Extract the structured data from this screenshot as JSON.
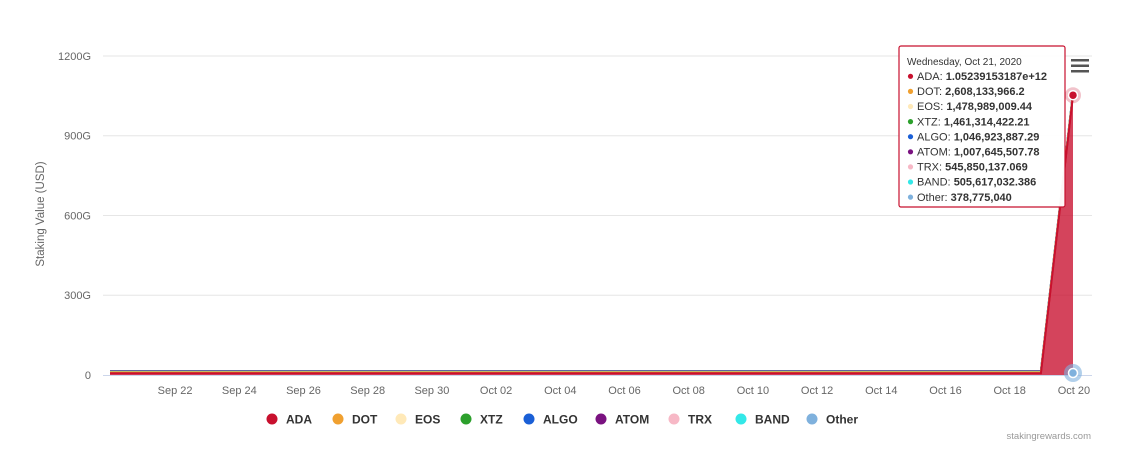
{
  "chart_data": {
    "type": "area",
    "title": "",
    "ylabel": "Staking Value (USD)",
    "xlabel": "",
    "ylim": [
      0,
      1260000000000
    ],
    "yticks": [
      0,
      300000000000,
      600000000000,
      900000000000,
      1200000000000
    ],
    "ytick_labels": [
      "0",
      "300G",
      "600G",
      "900G",
      "1200G"
    ],
    "x_tick_labels": [
      "Sep 22",
      "Sep 24",
      "Sep 26",
      "Sep 28",
      "Sep 30",
      "Oct 02",
      "Oct 04",
      "Oct 06",
      "Oct 08",
      "Oct 10",
      "Oct 12",
      "Oct 14",
      "Oct 16",
      "Oct 18",
      "Oct 20"
    ],
    "x": [
      "Sep 21",
      "Sep 22",
      "Sep 23",
      "Sep 24",
      "Sep 25",
      "Sep 26",
      "Sep 27",
      "Sep 28",
      "Sep 29",
      "Sep 30",
      "Oct 01",
      "Oct 02",
      "Oct 03",
      "Oct 04",
      "Oct 05",
      "Oct 06",
      "Oct 07",
      "Oct 08",
      "Oct 09",
      "Oct 10",
      "Oct 11",
      "Oct 12",
      "Oct 13",
      "Oct 14",
      "Oct 15",
      "Oct 16",
      "Oct 17",
      "Oct 18",
      "Oct 19",
      "Oct 20",
      "Oct 21"
    ],
    "grid": true,
    "legend_position": "bottom-center",
    "series": [
      {
        "name": "ADA",
        "color": "#c8102e",
        "values": [
          6500000000.0,
          6500000000.0,
          6500000000.0,
          6500000000.0,
          6500000000.0,
          6500000000.0,
          6500000000.0,
          6500000000.0,
          6500000000.0,
          6500000000.0,
          6500000000.0,
          6500000000.0,
          6500000000.0,
          6500000000.0,
          6500000000.0,
          6500000000.0,
          6500000000.0,
          6500000000.0,
          6500000000.0,
          6500000000.0,
          6500000000.0,
          6500000000.0,
          6500000000.0,
          6500000000.0,
          6500000000.0,
          6500000000.0,
          6500000000.0,
          6500000000.0,
          6500000000.0,
          6500000000.0,
          1052391531870
        ]
      },
      {
        "name": "DOT",
        "color": "#f0a030",
        "values": [
          2400000000.0,
          2400000000.0,
          2400000000.0,
          2400000000.0,
          2400000000.0,
          2400000000.0,
          2400000000.0,
          2400000000.0,
          2400000000.0,
          2400000000.0,
          2400000000.0,
          2400000000.0,
          2400000000.0,
          2400000000.0,
          2400000000.0,
          2400000000.0,
          2400000000.0,
          2400000000.0,
          2400000000.0,
          2400000000.0,
          2400000000.0,
          2400000000.0,
          2400000000.0,
          2400000000.0,
          2400000000.0,
          2400000000.0,
          2400000000.0,
          2400000000.0,
          2400000000.0,
          2500000000.0,
          2608133966.2
        ]
      },
      {
        "name": "EOS",
        "color": "#ffe9b8",
        "values": [
          1500000000.0,
          1500000000.0,
          1500000000.0,
          1500000000.0,
          1500000000.0,
          1500000000.0,
          1500000000.0,
          1500000000.0,
          1500000000.0,
          1500000000.0,
          1500000000.0,
          1500000000.0,
          1500000000.0,
          1500000000.0,
          1500000000.0,
          1500000000.0,
          1500000000.0,
          1500000000.0,
          1500000000.0,
          1500000000.0,
          1500000000.0,
          1500000000.0,
          1500000000.0,
          1500000000.0,
          1500000000.0,
          1500000000.0,
          1500000000.0,
          1500000000.0,
          1500000000.0,
          1500000000.0,
          1478989009.44
        ]
      },
      {
        "name": "XTZ",
        "color": "#2ca02c",
        "values": [
          1400000000.0,
          1400000000.0,
          1400000000.0,
          1400000000.0,
          1400000000.0,
          1400000000.0,
          1400000000.0,
          1400000000.0,
          1400000000.0,
          1400000000.0,
          1400000000.0,
          1400000000.0,
          1400000000.0,
          1400000000.0,
          1400000000.0,
          1400000000.0,
          1400000000.0,
          1400000000.0,
          1400000000.0,
          1400000000.0,
          1400000000.0,
          1400000000.0,
          1400000000.0,
          1400000000.0,
          1400000000.0,
          1400000000.0,
          1400000000.0,
          1400000000.0,
          1400000000.0,
          1450000000.0,
          1461314422.21
        ]
      },
      {
        "name": "ALGO",
        "color": "#1a5fd6",
        "values": [
          1000000000.0,
          1000000000.0,
          1000000000.0,
          1000000000.0,
          1000000000.0,
          1000000000.0,
          1000000000.0,
          1000000000.0,
          1000000000.0,
          1000000000.0,
          1000000000.0,
          1000000000.0,
          1000000000.0,
          1000000000.0,
          1000000000.0,
          1000000000.0,
          1000000000.0,
          1000000000.0,
          1000000000.0,
          1000000000.0,
          1000000000.0,
          1000000000.0,
          1000000000.0,
          1000000000.0,
          1000000000.0,
          1000000000.0,
          1000000000.0,
          1000000000.0,
          1000000000.0,
          1040000000.0,
          1046923887.29
        ]
      },
      {
        "name": "ATOM",
        "color": "#7a1280",
        "values": [
          1000000000.0,
          1000000000.0,
          1000000000.0,
          1000000000.0,
          1000000000.0,
          1000000000.0,
          1000000000.0,
          1000000000.0,
          1000000000.0,
          1000000000.0,
          1000000000.0,
          1000000000.0,
          1000000000.0,
          1000000000.0,
          1000000000.0,
          1000000000.0,
          1000000000.0,
          1000000000.0,
          1000000000.0,
          1000000000.0,
          1000000000.0,
          1000000000.0,
          1000000000.0,
          1000000000.0,
          1000000000.0,
          1000000000.0,
          1000000000.0,
          1000000000.0,
          1000000000.0,
          1000000000.0,
          1007645507.78
        ]
      },
      {
        "name": "TRX",
        "color": "#f7b8c6",
        "values": [
          540000000.0,
          540000000.0,
          540000000.0,
          540000000.0,
          540000000.0,
          540000000.0,
          540000000.0,
          540000000.0,
          540000000.0,
          540000000.0,
          540000000.0,
          540000000.0,
          540000000.0,
          540000000.0,
          540000000.0,
          540000000.0,
          540000000.0,
          540000000.0,
          540000000.0,
          540000000.0,
          540000000.0,
          540000000.0,
          540000000.0,
          540000000.0,
          540000000.0,
          540000000.0,
          540000000.0,
          540000000.0,
          540000000.0,
          545000000.0,
          545850137.069
        ]
      },
      {
        "name": "BAND",
        "color": "#33e8e8",
        "values": [
          500000000.0,
          500000000.0,
          500000000.0,
          500000000.0,
          500000000.0,
          500000000.0,
          500000000.0,
          500000000.0,
          500000000.0,
          500000000.0,
          500000000.0,
          500000000.0,
          500000000.0,
          500000000.0,
          500000000.0,
          500000000.0,
          500000000.0,
          500000000.0,
          500000000.0,
          500000000.0,
          500000000.0,
          500000000.0,
          500000000.0,
          500000000.0,
          500000000.0,
          500000000.0,
          500000000.0,
          500000000.0,
          500000000.0,
          500000000.0,
          505617032.386
        ]
      },
      {
        "name": "Other",
        "color": "#7fb1dd",
        "values": [
          380000000.0,
          380000000.0,
          380000000.0,
          380000000.0,
          380000000.0,
          380000000.0,
          380000000.0,
          380000000.0,
          380000000.0,
          380000000.0,
          380000000.0,
          380000000.0,
          380000000.0,
          380000000.0,
          380000000.0,
          380000000.0,
          380000000.0,
          380000000.0,
          380000000.0,
          380000000.0,
          380000000.0,
          380000000.0,
          380000000.0,
          380000000.0,
          380000000.0,
          380000000.0,
          380000000.0,
          380000000.0,
          380000000.0,
          380000000.0,
          378775040
        ]
      }
    ],
    "tooltip": {
      "date": "Wednesday, Oct 21, 2020",
      "rows": [
        {
          "name": "ADA",
          "value": "1.05239153187e+12"
        },
        {
          "name": "DOT",
          "value": "2,608,133,966.2"
        },
        {
          "name": "EOS",
          "value": "1,478,989,009.44"
        },
        {
          "name": "XTZ",
          "value": "1,461,314,422.21"
        },
        {
          "name": "ALGO",
          "value": "1,046,923,887.29"
        },
        {
          "name": "ATOM",
          "value": "1,007,645,507.78"
        },
        {
          "name": "TRX",
          "value": "545,850,137.069"
        },
        {
          "name": "BAND",
          "value": "505,617,032.386"
        },
        {
          "name": "Other",
          "value": "378,775,040"
        }
      ]
    },
    "credits": "stakingrewards.com"
  }
}
